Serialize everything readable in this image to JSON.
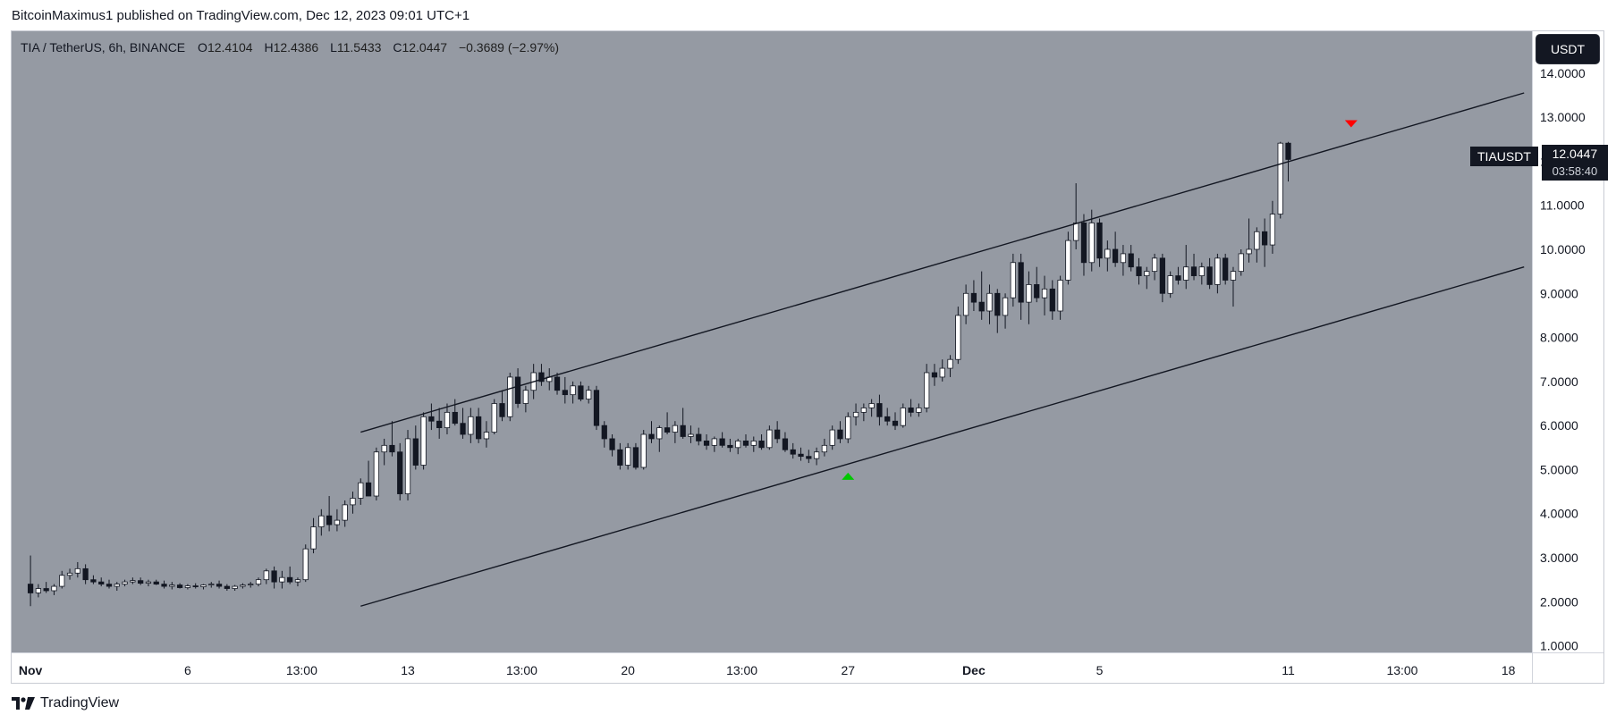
{
  "header": {
    "publisher_line": "BitcoinMaximus1 published on TradingView.com, Dec 12, 2023 09:01 UTC+1"
  },
  "footer": {
    "brand": "TradingView"
  },
  "legend": {
    "symbol": "TIA / TetherUS, 6h, BINANCE",
    "o_label": "O",
    "o_value": "12.4104",
    "h_label": "H",
    "h_value": "12.4386",
    "l_label": "L",
    "l_value": "11.5433",
    "c_label": "C",
    "c_value": "12.0447",
    "change": "−0.3689 (−2.97%)"
  },
  "currency_badge": "USDT",
  "price_badge": {
    "symbol": "TIAUSDT",
    "price": "12.0447",
    "countdown": "03:58:40"
  },
  "colors": {
    "background": "#959aa3",
    "candle_up": "#ffffff",
    "candle_down": "#131722",
    "channel_line": "#131722",
    "marker_top": "#ff0000",
    "marker_bottom": "#00c800"
  },
  "chart_data": {
    "type": "candlestick",
    "timeframe": "6h",
    "y_range": [
      0.85,
      14.95
    ],
    "y_ticks": [
      "1.0000",
      "2.0000",
      "3.0000",
      "4.0000",
      "5.0000",
      "6.0000",
      "7.0000",
      "8.0000",
      "9.0000",
      "10.0000",
      "11.0000",
      "12.0000",
      "13.0000",
      "14.0000"
    ],
    "x_ticks": [
      {
        "label": "Nov",
        "index": 0
      },
      {
        "label": "6",
        "index": 20
      },
      {
        "label": "13:00",
        "index": 34.5
      },
      {
        "label": "13",
        "index": 48
      },
      {
        "label": "13:00",
        "index": 62.5
      },
      {
        "label": "20",
        "index": 76
      },
      {
        "label": "13:00",
        "index": 90.5
      },
      {
        "label": "27",
        "index": 104
      },
      {
        "label": "Dec",
        "index": 120
      },
      {
        "label": "5",
        "index": 136
      },
      {
        "label": "11",
        "index": 160
      },
      {
        "label": "13:00",
        "index": 174.5
      },
      {
        "label": "18",
        "index": 188
      }
    ],
    "x_index_range": [
      -2.4,
      191
    ],
    "ohlc": [
      [
        2.4,
        3.05,
        1.9,
        2.2
      ],
      [
        2.2,
        2.4,
        2.1,
        2.3
      ],
      [
        2.3,
        2.45,
        2.2,
        2.25
      ],
      [
        2.25,
        2.4,
        2.15,
        2.35
      ],
      [
        2.35,
        2.7,
        2.3,
        2.6
      ],
      [
        2.6,
        2.75,
        2.5,
        2.65
      ],
      [
        2.65,
        2.9,
        2.55,
        2.75
      ],
      [
        2.75,
        2.85,
        2.4,
        2.5
      ],
      [
        2.5,
        2.6,
        2.4,
        2.45
      ],
      [
        2.45,
        2.55,
        2.35,
        2.4
      ],
      [
        2.4,
        2.5,
        2.3,
        2.35
      ],
      [
        2.35,
        2.45,
        2.25,
        2.4
      ],
      [
        2.4,
        2.5,
        2.35,
        2.45
      ],
      [
        2.45,
        2.55,
        2.4,
        2.48
      ],
      [
        2.48,
        2.55,
        2.38,
        2.42
      ],
      [
        2.42,
        2.5,
        2.35,
        2.45
      ],
      [
        2.45,
        2.5,
        2.38,
        2.4
      ],
      [
        2.4,
        2.48,
        2.3,
        2.35
      ],
      [
        2.35,
        2.45,
        2.28,
        2.38
      ],
      [
        2.38,
        2.42,
        2.3,
        2.32
      ],
      [
        2.32,
        2.4,
        2.28,
        2.36
      ],
      [
        2.36,
        2.42,
        2.3,
        2.34
      ],
      [
        2.34,
        2.4,
        2.28,
        2.38
      ],
      [
        2.38,
        2.45,
        2.32,
        2.4
      ],
      [
        2.4,
        2.48,
        2.3,
        2.35
      ],
      [
        2.35,
        2.4,
        2.25,
        2.3
      ],
      [
        2.3,
        2.38,
        2.25,
        2.35
      ],
      [
        2.35,
        2.42,
        2.3,
        2.38
      ],
      [
        2.38,
        2.45,
        2.32,
        2.4
      ],
      [
        2.4,
        2.55,
        2.35,
        2.5
      ],
      [
        2.5,
        2.75,
        2.4,
        2.7
      ],
      [
        2.7,
        2.8,
        2.3,
        2.45
      ],
      [
        2.45,
        2.7,
        2.3,
        2.55
      ],
      [
        2.55,
        2.8,
        2.4,
        2.45
      ],
      [
        2.45,
        2.55,
        2.35,
        2.5
      ],
      [
        2.5,
        3.3,
        2.45,
        3.2
      ],
      [
        3.2,
        3.9,
        3.1,
        3.7
      ],
      [
        3.7,
        4.1,
        3.5,
        3.95
      ],
      [
        3.95,
        4.4,
        3.6,
        3.75
      ],
      [
        3.75,
        4.1,
        3.6,
        3.85
      ],
      [
        3.85,
        4.3,
        3.7,
        4.2
      ],
      [
        4.2,
        4.5,
        4.0,
        4.35
      ],
      [
        4.35,
        4.8,
        4.2,
        4.7
      ],
      [
        4.7,
        5.2,
        4.5,
        4.4
      ],
      [
        4.4,
        5.5,
        4.3,
        5.4
      ],
      [
        5.4,
        5.7,
        5.1,
        5.55
      ],
      [
        5.55,
        6.1,
        5.3,
        5.4
      ],
      [
        5.4,
        5.6,
        4.3,
        4.45
      ],
      [
        4.45,
        5.9,
        4.3,
        5.7
      ],
      [
        5.7,
        6.0,
        5.0,
        5.1
      ],
      [
        5.1,
        6.3,
        5.0,
        6.2
      ],
      [
        6.2,
        6.5,
        5.9,
        6.1
      ],
      [
        6.1,
        6.4,
        5.7,
        5.95
      ],
      [
        5.95,
        6.5,
        5.8,
        6.3
      ],
      [
        6.3,
        6.6,
        6.0,
        6.05
      ],
      [
        6.05,
        6.4,
        5.7,
        5.8
      ],
      [
        5.8,
        6.4,
        5.6,
        6.2
      ],
      [
        6.2,
        6.4,
        5.6,
        5.7
      ],
      [
        5.7,
        6.1,
        5.5,
        5.85
      ],
      [
        5.85,
        6.6,
        5.8,
        6.5
      ],
      [
        6.5,
        6.8,
        6.1,
        6.2
      ],
      [
        6.2,
        7.2,
        6.1,
        7.1
      ],
      [
        7.1,
        7.3,
        6.4,
        6.5
      ],
      [
        6.5,
        6.9,
        6.3,
        6.8
      ],
      [
        6.8,
        7.4,
        6.6,
        7.2
      ],
      [
        7.2,
        7.4,
        6.9,
        7.0
      ],
      [
        7.0,
        7.3,
        6.8,
        7.1
      ],
      [
        7.1,
        7.2,
        6.7,
        6.8
      ],
      [
        6.8,
        7.1,
        6.5,
        6.7
      ],
      [
        6.7,
        7.0,
        6.5,
        6.9
      ],
      [
        6.9,
        7.0,
        6.55,
        6.6
      ],
      [
        6.6,
        6.9,
        6.5,
        6.8
      ],
      [
        6.8,
        6.9,
        5.9,
        6.0
      ],
      [
        6.0,
        6.1,
        5.5,
        5.7
      ],
      [
        5.7,
        5.8,
        5.3,
        5.45
      ],
      [
        5.45,
        5.6,
        5.0,
        5.1
      ],
      [
        5.1,
        5.6,
        5.0,
        5.5
      ],
      [
        5.5,
        5.6,
        5.0,
        5.05
      ],
      [
        5.05,
        5.9,
        5.0,
        5.8
      ],
      [
        5.8,
        6.1,
        5.6,
        5.7
      ],
      [
        5.7,
        6.0,
        5.4,
        5.95
      ],
      [
        5.95,
        6.3,
        5.8,
        5.85
      ],
      [
        5.85,
        6.1,
        5.6,
        6.0
      ],
      [
        6.0,
        6.4,
        5.7,
        5.75
      ],
      [
        5.75,
        6.0,
        5.6,
        5.8
      ],
      [
        5.8,
        5.95,
        5.55,
        5.65
      ],
      [
        5.65,
        5.8,
        5.45,
        5.55
      ],
      [
        5.55,
        5.75,
        5.4,
        5.7
      ],
      [
        5.7,
        5.85,
        5.5,
        5.55
      ],
      [
        5.55,
        5.7,
        5.4,
        5.5
      ],
      [
        5.5,
        5.7,
        5.35,
        5.65
      ],
      [
        5.65,
        5.8,
        5.5,
        5.55
      ],
      [
        5.55,
        5.75,
        5.4,
        5.65
      ],
      [
        5.65,
        5.8,
        5.45,
        5.5
      ],
      [
        5.5,
        6.0,
        5.45,
        5.9
      ],
      [
        5.9,
        6.1,
        5.6,
        5.7
      ],
      [
        5.7,
        5.85,
        5.4,
        5.45
      ],
      [
        5.45,
        5.6,
        5.25,
        5.35
      ],
      [
        5.35,
        5.5,
        5.2,
        5.3
      ],
      [
        5.3,
        5.45,
        5.15,
        5.25
      ],
      [
        5.25,
        5.5,
        5.1,
        5.4
      ],
      [
        5.4,
        5.7,
        5.3,
        5.55
      ],
      [
        5.55,
        6.0,
        5.45,
        5.9
      ],
      [
        5.9,
        6.1,
        5.6,
        5.7
      ],
      [
        5.7,
        6.3,
        5.6,
        6.2
      ],
      [
        6.2,
        6.5,
        6.0,
        6.3
      ],
      [
        6.3,
        6.5,
        6.1,
        6.4
      ],
      [
        6.4,
        6.6,
        6.2,
        6.5
      ],
      [
        6.5,
        6.7,
        6.0,
        6.2
      ],
      [
        6.2,
        6.4,
        6.0,
        6.1
      ],
      [
        6.1,
        6.3,
        5.9,
        6.0
      ],
      [
        6.0,
        6.5,
        5.95,
        6.4
      ],
      [
        6.4,
        6.6,
        6.2,
        6.3
      ],
      [
        6.3,
        6.5,
        6.2,
        6.4
      ],
      [
        6.4,
        7.4,
        6.3,
        7.2
      ],
      [
        7.2,
        7.4,
        6.9,
        7.1
      ],
      [
        7.1,
        7.5,
        7.0,
        7.3
      ],
      [
        7.3,
        7.6,
        7.1,
        7.5
      ],
      [
        7.5,
        8.7,
        7.4,
        8.5
      ],
      [
        8.5,
        9.2,
        8.3,
        9.0
      ],
      [
        9.0,
        9.3,
        8.6,
        8.8
      ],
      [
        8.8,
        9.5,
        8.4,
        8.6
      ],
      [
        8.6,
        9.2,
        8.3,
        9.0
      ],
      [
        9.0,
        9.1,
        8.1,
        8.5
      ],
      [
        8.5,
        9.0,
        8.2,
        8.9
      ],
      [
        8.9,
        9.9,
        8.7,
        9.7
      ],
      [
        9.7,
        9.9,
        8.4,
        8.8
      ],
      [
        8.8,
        9.5,
        8.3,
        9.2
      ],
      [
        9.2,
        9.6,
        8.8,
        8.9
      ],
      [
        8.9,
        9.4,
        8.5,
        9.1
      ],
      [
        9.1,
        9.3,
        8.4,
        8.6
      ],
      [
        8.6,
        9.4,
        8.4,
        9.3
      ],
      [
        9.3,
        10.4,
        9.2,
        10.2
      ],
      [
        10.2,
        11.5,
        10.0,
        10.6
      ],
      [
        10.6,
        10.8,
        9.4,
        9.7
      ],
      [
        9.7,
        10.9,
        9.5,
        10.6
      ],
      [
        10.6,
        10.7,
        9.6,
        9.8
      ],
      [
        9.8,
        10.2,
        9.5,
        10.0
      ],
      [
        10.0,
        10.4,
        9.6,
        9.7
      ],
      [
        9.7,
        10.1,
        9.4,
        9.9
      ],
      [
        9.9,
        10.1,
        9.5,
        9.6
      ],
      [
        9.6,
        9.8,
        9.2,
        9.4
      ],
      [
        9.4,
        9.6,
        9.1,
        9.5
      ],
      [
        9.5,
        9.9,
        9.3,
        9.8
      ],
      [
        9.8,
        9.9,
        8.8,
        9.0
      ],
      [
        9.0,
        9.5,
        8.9,
        9.4
      ],
      [
        9.4,
        9.6,
        9.2,
        9.3
      ],
      [
        9.3,
        10.1,
        9.1,
        9.6
      ],
      [
        9.6,
        9.9,
        9.3,
        9.4
      ],
      [
        9.4,
        9.7,
        9.2,
        9.6
      ],
      [
        9.6,
        9.8,
        9.1,
        9.2
      ],
      [
        9.2,
        9.9,
        9.0,
        9.8
      ],
      [
        9.8,
        9.9,
        9.2,
        9.3
      ],
      [
        9.3,
        9.6,
        8.7,
        9.5
      ],
      [
        9.5,
        10.0,
        9.4,
        9.9
      ],
      [
        9.9,
        10.7,
        9.7,
        10.0
      ],
      [
        10.0,
        10.5,
        9.7,
        10.4
      ],
      [
        10.4,
        10.7,
        9.6,
        10.1
      ],
      [
        10.1,
        11.1,
        9.9,
        10.8
      ],
      [
        10.8,
        12.44,
        10.7,
        12.41
      ],
      [
        12.41,
        12.44,
        11.54,
        12.04
      ]
    ],
    "channel_upper": {
      "start": [
        42,
        5.85
      ],
      "end": [
        190,
        13.55
      ]
    },
    "channel_lower": {
      "start": [
        42,
        1.9
      ],
      "end": [
        190,
        9.6
      ]
    },
    "markers": [
      {
        "type": "down-triangle",
        "index": 168,
        "price": 12.85,
        "color": "#ff0000"
      },
      {
        "type": "up-triangle",
        "index": 104,
        "price": 4.85,
        "color": "#00c800"
      }
    ]
  }
}
